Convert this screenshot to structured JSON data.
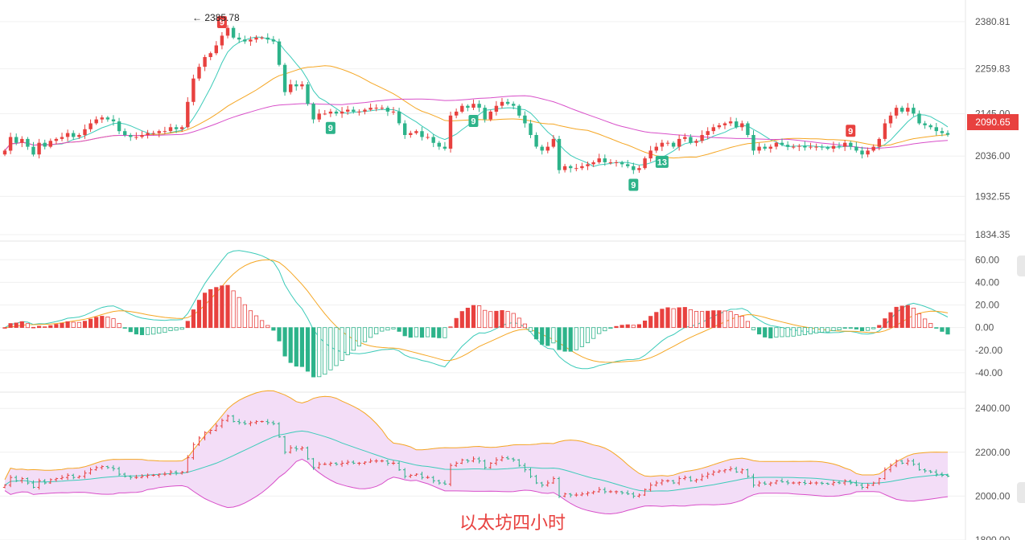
{
  "caption": "以太坊四小时",
  "last_price": "2090.65",
  "high_label": "← 2385.78",
  "colors": {
    "up": "#e8413f",
    "down": "#2db38a",
    "ma_fast": "#3ccbb9",
    "ma_mid": "#f5a623",
    "ma_slow": "#d84fc9",
    "band_fill": "#f3ddf7",
    "grid": "#f0f0f0"
  },
  "chart_data": [
    {
      "type": "candlestick",
      "panel": "price",
      "y_ticks": [
        "2380.81",
        "2259.83",
        "2145.00",
        "2036.00",
        "1932.55",
        "1834.35"
      ],
      "y_tick_values": [
        2380.81,
        2259.83,
        2145.0,
        2036.0,
        1932.55,
        1834.35
      ],
      "ylim": [
        1834.35,
        2420
      ],
      "closes": [
        2050,
        2085,
        2070,
        2080,
        2060,
        2040,
        2070,
        2060,
        2075,
        2080,
        2085,
        2095,
        2085,
        2090,
        2105,
        2120,
        2130,
        2135,
        2130,
        2125,
        2100,
        2090,
        2085,
        2085,
        2090,
        2095,
        2095,
        2100,
        2100,
        2110,
        2105,
        2110,
        2175,
        2235,
        2265,
        2290,
        2300,
        2320,
        2345,
        2365,
        2340,
        2335,
        2330,
        2335,
        2340,
        2340,
        2335,
        2330,
        2270,
        2200,
        2220,
        2215,
        2220,
        2170,
        2130,
        2145,
        2145,
        2150,
        2145,
        2150,
        2155,
        2150,
        2150,
        2155,
        2160,
        2160,
        2160,
        2150,
        2150,
        2120,
        2090,
        2095,
        2100,
        2085,
        2085,
        2070,
        2060,
        2055,
        2140,
        2150,
        2165,
        2160,
        2170,
        2160,
        2130,
        2150,
        2165,
        2175,
        2170,
        2165,
        2140,
        2120,
        2090,
        2060,
        2050,
        2060,
        2080,
        2000,
        2010,
        2005,
        2005,
        2010,
        2015,
        2020,
        2030,
        2020,
        2020,
        2020,
        2015,
        2010,
        2000,
        2005,
        2030,
        2050,
        2060,
        2070,
        2070,
        2060,
        2080,
        2085,
        2070,
        2075,
        2090,
        2100,
        2110,
        2115,
        2120,
        2125,
        2110,
        2120,
        2090,
        2050,
        2060,
        2055,
        2060,
        2070,
        2065,
        2060,
        2060,
        2062,
        2058,
        2060,
        2060,
        2058,
        2055,
        2062,
        2060,
        2070,
        2060,
        2050,
        2040,
        2050,
        2060,
        2080,
        2120,
        2140,
        2160,
        2150,
        2160,
        2145,
        2120,
        2115,
        2110,
        2100,
        2095,
        2090.65
      ],
      "highs_labels": [
        {
          "label": "9"
        }
      ],
      "signals_top": [
        "9",
        "9"
      ],
      "signals_bottom": [
        "9",
        "9",
        "9",
        "13"
      ]
    },
    {
      "type": "macd",
      "panel": "oscillator",
      "y_ticks": [
        "60.00",
        "40.00",
        "20.00",
        "0.00",
        "-20.00",
        "-40.00"
      ],
      "y_tick_values": [
        60,
        40,
        20,
        0,
        -20,
        -40
      ],
      "ylim": [
        -50,
        68
      ]
    },
    {
      "type": "bollinger",
      "panel": "bands",
      "y_ticks": [
        "2400.00",
        "2200.00",
        "2000.00",
        "1800.00"
      ],
      "y_tick_values": [
        2400,
        2200,
        2000,
        1800
      ],
      "ylim": [
        1800,
        2430
      ]
    }
  ]
}
